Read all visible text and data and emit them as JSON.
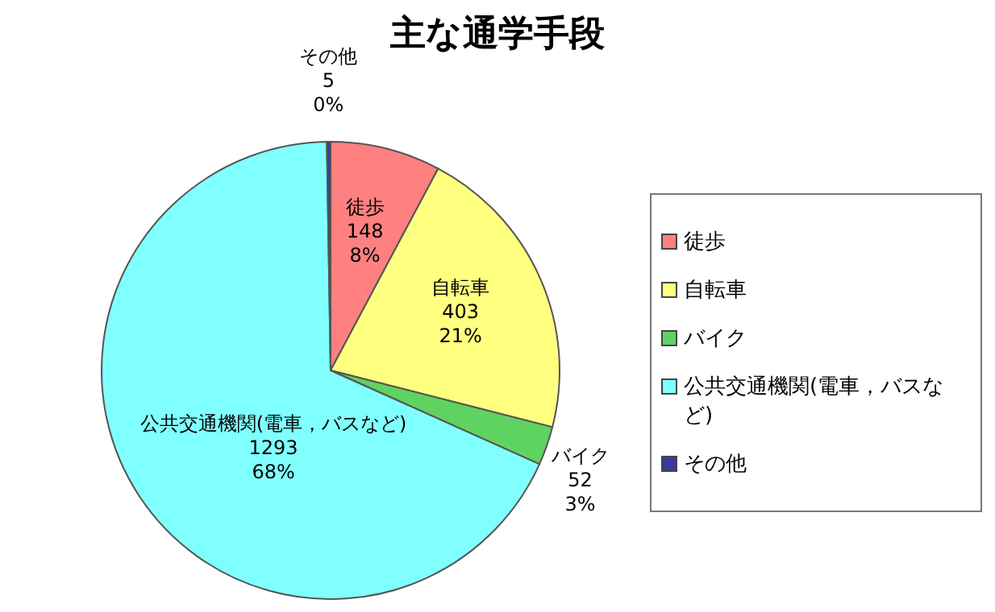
{
  "chart_data": {
    "type": "pie",
    "title": "主な通学手段",
    "categories": [
      "徒歩",
      "自転車",
      "バイク",
      "公共交通機関(電車，バスなど)",
      "その他"
    ],
    "values": [
      148,
      403,
      52,
      1293,
      5
    ],
    "value_labels": [
      "148\n8%",
      "403\n21%",
      "52\n3%",
      "1293\n68%",
      "5\n0%"
    ],
    "colors": [
      "#ff8080",
      "#ffff80",
      "#5fd35f",
      "#80ffff",
      "#3a3a9a"
    ],
    "legend": "right"
  }
}
